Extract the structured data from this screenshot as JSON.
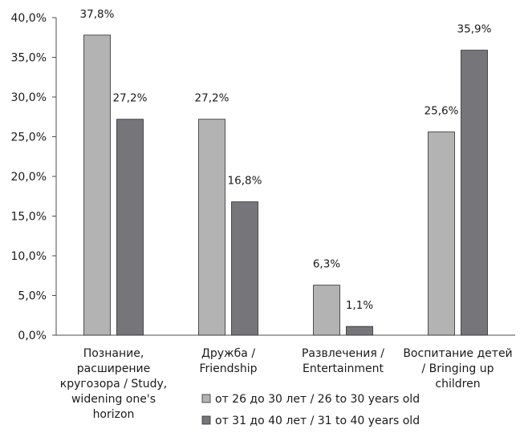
{
  "chart_data": {
    "type": "bar",
    "title": "",
    "xlabel": "",
    "ylabel": "",
    "ylim": [
      0,
      40
    ],
    "y_ticks": [
      "0,0%",
      "5,0%",
      "10,0%",
      "15,0%",
      "20,0%",
      "25,0%",
      "30,0%",
      "35,0%",
      "40,0%"
    ],
    "grid": false,
    "legend_position": "bottom",
    "categories": [
      [
        "Познание,",
        "расширение",
        "кругозора / Study,",
        "widening one's",
        "horizon"
      ],
      [
        "Дружба /",
        "Friendship"
      ],
      [
        "Развлечения /",
        "Entertainment"
      ],
      [
        "Воспитание детей",
        "/ Bringing up",
        "children"
      ]
    ],
    "series": [
      {
        "name": "от 26 до 30 лет / 26 to 30 years old",
        "color": "#b3b3b3",
        "values": [
          37.8,
          27.2,
          6.3,
          25.6
        ],
        "labels": [
          "37,8%",
          "27,2%",
          "6,3%",
          "25,6%"
        ]
      },
      {
        "name": "от 31 до 40 лет / 31 to 40 years old",
        "color": "#76767a",
        "values": [
          27.2,
          16.8,
          1.1,
          35.9
        ],
        "labels": [
          "27,2%",
          "16,8%",
          "1,1%",
          "35,9%"
        ]
      }
    ]
  }
}
